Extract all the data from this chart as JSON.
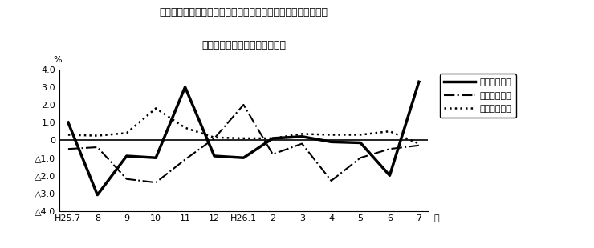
{
  "title_line1": "第４図　賃金、労働時間、常用雇用指数　対前年同月比の推移",
  "title_line2": "（規模５人以上　調査産業計）",
  "xlabel": "月",
  "ylabel": "%",
  "x_labels": [
    "H25.7",
    "8",
    "9",
    "10",
    "11",
    "12",
    "H26.1",
    "2",
    "3",
    "4",
    "5",
    "6",
    "7"
  ],
  "ylim": [
    -4.0,
    4.0
  ],
  "yticks": [
    4.0,
    3.0,
    2.0,
    1.0,
    0.0,
    -1.0,
    -2.0,
    -3.0,
    -4.0
  ],
  "ytick_labels": [
    "4.0",
    "3.0",
    "2.0",
    "1.0",
    "0",
    "△1.0",
    "△2.0",
    "△3.0",
    "△4.0"
  ],
  "series": [
    {
      "name": "現金給与総額",
      "linestyle": "solid",
      "linewidth": 2.5,
      "color": "#000000",
      "values": [
        1.0,
        -3.1,
        -0.9,
        -1.0,
        3.0,
        -0.9,
        -1.0,
        0.1,
        0.2,
        -0.1,
        -0.15,
        -2.0,
        3.3
      ]
    },
    {
      "name": "総実労働時間",
      "linestyle": "dashdot",
      "linewidth": 1.5,
      "color": "#000000",
      "values": [
        -0.5,
        -0.4,
        -2.2,
        -2.4,
        -1.1,
        0.1,
        2.0,
        -0.8,
        -0.2,
        -2.3,
        -1.0,
        -0.5,
        -0.3
      ]
    },
    {
      "name": "常用雇用指数",
      "linestyle": "dotted",
      "linewidth": 1.8,
      "color": "#000000",
      "values": [
        0.3,
        0.25,
        0.4,
        1.8,
        0.7,
        0.15,
        0.1,
        0.1,
        0.35,
        0.3,
        0.3,
        0.5,
        -0.2
      ]
    }
  ],
  "background_color": "#ffffff",
  "zero_line": true
}
